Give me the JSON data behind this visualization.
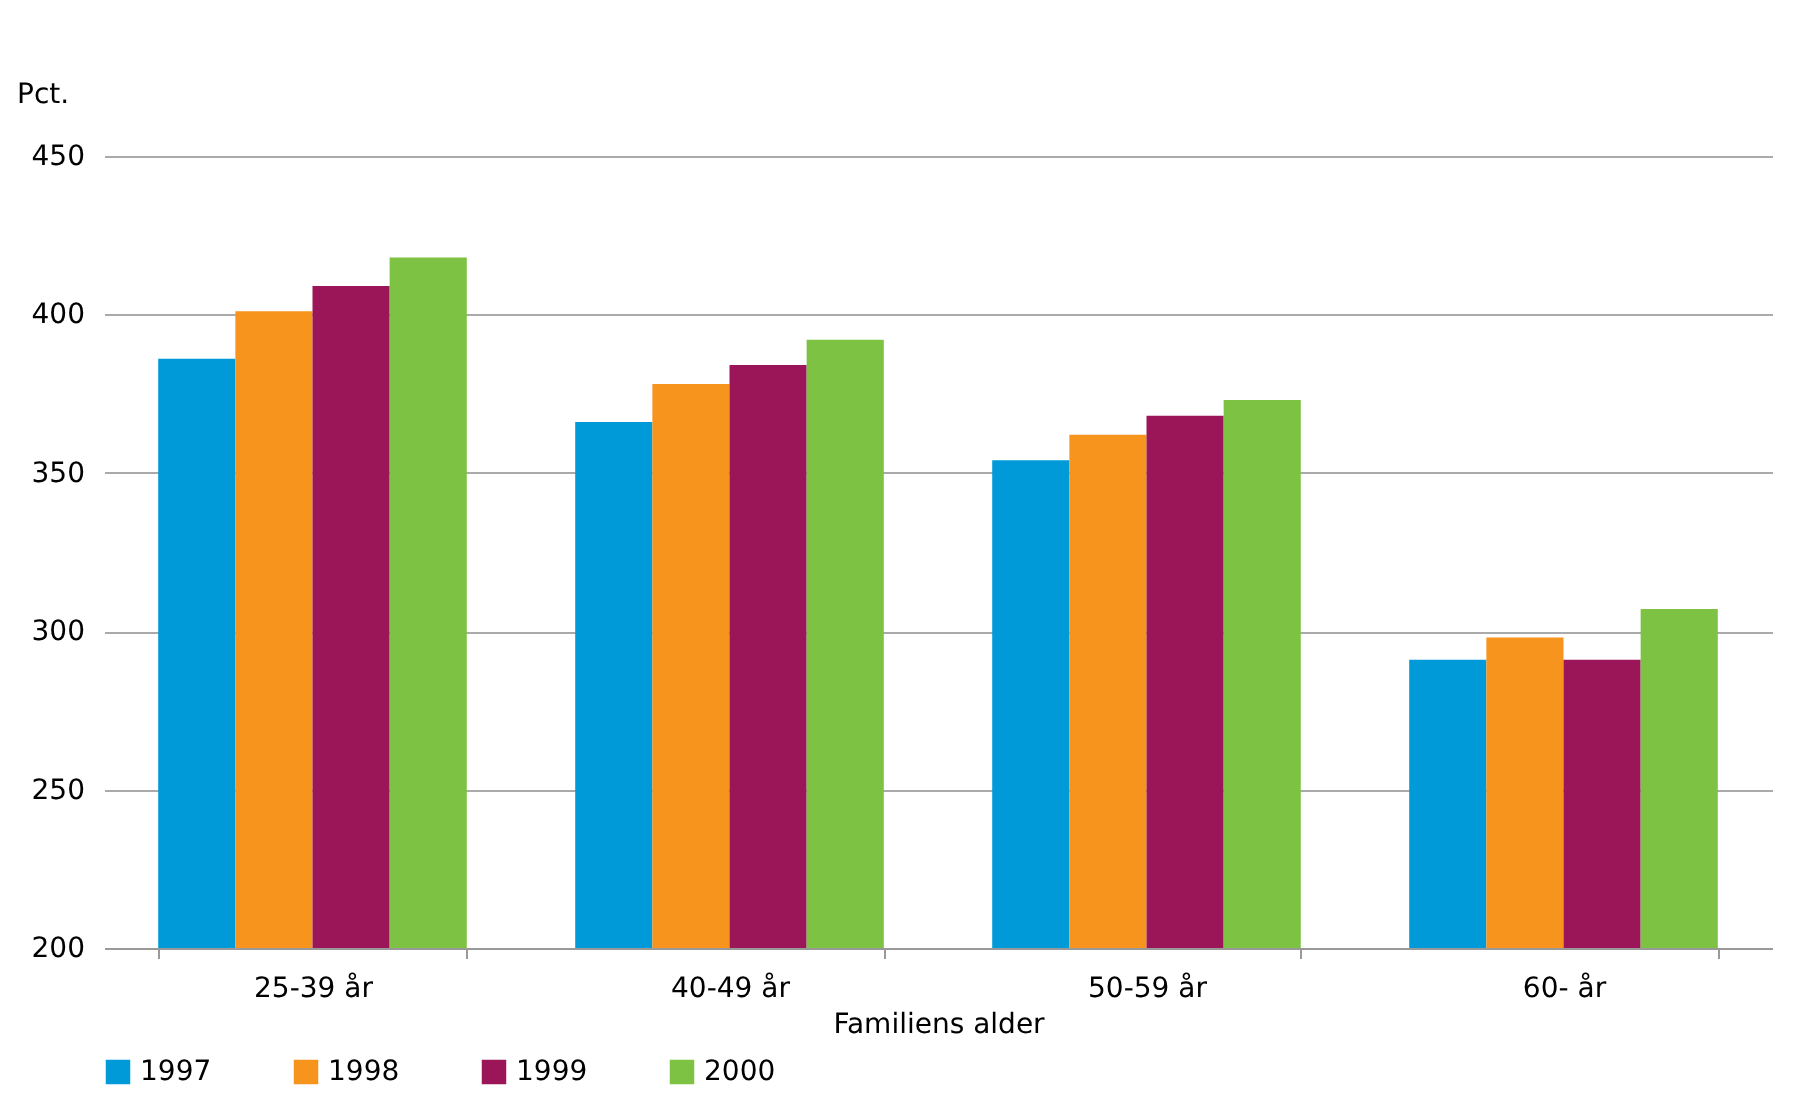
{
  "chart_data": {
    "type": "bar",
    "ylabel": "Pct.",
    "xlabel": "Familiens alder",
    "categories": [
      "25-39 år",
      "40-49 år",
      "50-59 år",
      "60- år"
    ],
    "series": [
      {
        "name": "1997",
        "color": "#009ad9",
        "values": [
          386,
          366,
          354,
          291
        ]
      },
      {
        "name": "1998",
        "color": "#f7941d",
        "values": [
          401,
          378,
          362,
          298
        ]
      },
      {
        "name": "1999",
        "color": "#9b1659",
        "values": [
          409,
          384,
          368,
          291
        ]
      },
      {
        "name": "2000",
        "color": "#7dc242",
        "values": [
          418,
          392,
          373,
          307
        ]
      }
    ],
    "ylim": [
      200,
      450
    ],
    "yticks": [
      200,
      250,
      300,
      350,
      400,
      450
    ],
    "grid": "y",
    "legend": "bottom left"
  }
}
